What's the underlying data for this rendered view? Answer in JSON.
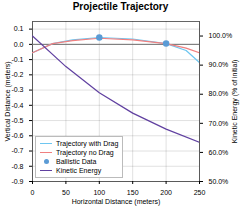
{
  "chart_data": {
    "type": "line",
    "title": "Projectile Trajectory",
    "xlabel": "Horizontal Distance (meters)",
    "ylabel": "Vertical Distance (meters)",
    "y2label": "Kinetic Energy (% of initial)",
    "xlim": [
      0,
      250
    ],
    "xticks": [
      0,
      50,
      100,
      150,
      200,
      250
    ],
    "ylim": [
      -0.9,
      0.15
    ],
    "yticks": [
      -0.9,
      -0.8,
      -0.7,
      -0.6,
      -0.5,
      -0.4,
      -0.3,
      -0.2,
      -0.1,
      {
        "value": 0.0,
        "label": "0.0"
      },
      0.1
    ],
    "y2lim": [
      0.5,
      1.05
    ],
    "y2ticks": [
      {
        "value": 0.5,
        "label": "50.0%"
      },
      {
        "value": 0.6,
        "label": "60.0%"
      },
      {
        "value": 0.7,
        "label": "70.0%"
      },
      {
        "value": 0.8,
        "label": "80.0%"
      },
      {
        "value": 0.9,
        "label": "90.0%"
      },
      {
        "value": 1.0,
        "label": "100.0%"
      }
    ],
    "grid": true,
    "legend": "lower left",
    "reference_lines": [
      {
        "y": 0,
        "color": "#707070"
      }
    ],
    "series": [
      {
        "name": "Trajectory with Drag",
        "type": "line",
        "color": "#6EC6F0",
        "x": [
          0,
          30,
          60,
          100,
          150,
          200,
          230,
          250
        ],
        "values": [
          -0.055,
          0.005,
          0.03,
          0.045,
          0.035,
          0.005,
          -0.04,
          -0.12
        ]
      },
      {
        "name": "Trajectory no Drag",
        "type": "line",
        "color": "#F08080",
        "x": [
          0,
          30,
          60,
          100,
          150,
          200,
          230,
          250
        ],
        "values": [
          -0.055,
          0.005,
          0.025,
          0.04,
          0.03,
          0.005,
          -0.025,
          -0.055
        ]
      },
      {
        "name": "Ballistic Data",
        "type": "scatter",
        "marker": "circle",
        "color": "#5B9BD5",
        "x": [
          100,
          200
        ],
        "values": [
          0.045,
          0.005
        ]
      },
      {
        "name": "Kinetic Energy",
        "type": "line",
        "axis": "y2",
        "color": "#6040A0",
        "x": [
          0,
          50,
          100,
          150,
          200,
          250
        ],
        "values": [
          1.0,
          0.895,
          0.805,
          0.735,
          0.68,
          0.635
        ]
      }
    ]
  }
}
